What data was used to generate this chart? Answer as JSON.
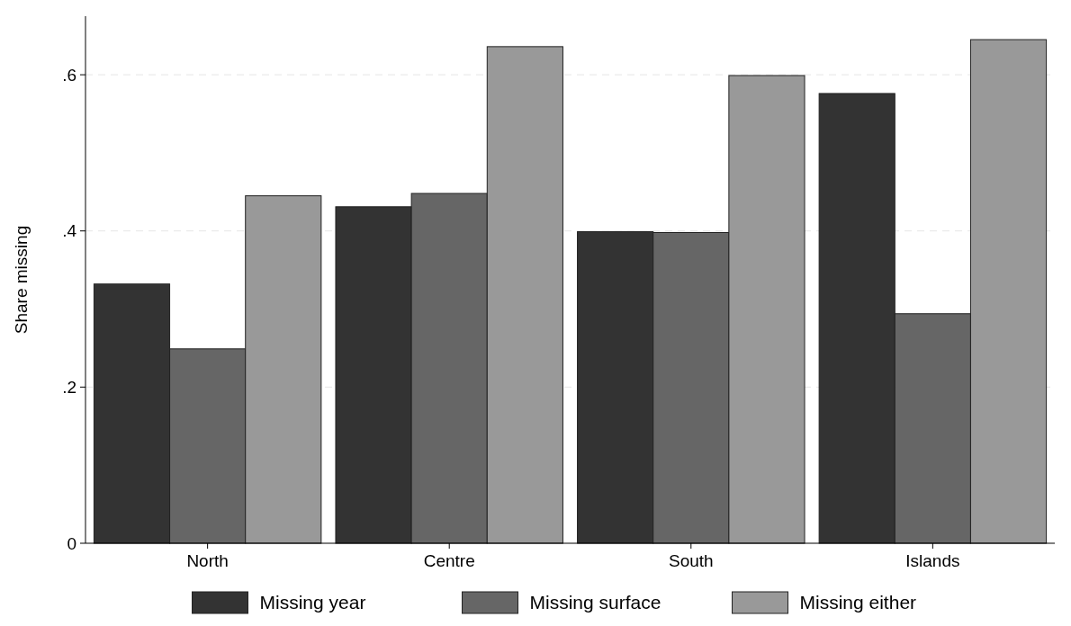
{
  "chart_data": {
    "type": "bar",
    "ylabel": "Share missing",
    "categories": [
      "North",
      "Centre",
      "South",
      "Islands"
    ],
    "series": [
      {
        "name": "Missing year",
        "color": "#333333",
        "values": [
          0.332,
          0.431,
          0.399,
          0.576
        ]
      },
      {
        "name": "Missing surface",
        "color": "#666666",
        "values": [
          0.249,
          0.448,
          0.398,
          0.294
        ]
      },
      {
        "name": "Missing either",
        "color": "#999999",
        "values": [
          0.445,
          0.636,
          0.599,
          0.645
        ]
      }
    ],
    "ylim": [
      0,
      0.675
    ],
    "yticks": [
      {
        "value": 0,
        "label": "0"
      },
      {
        "value": 0.2,
        "label": ".2"
      },
      {
        "value": 0.4,
        "label": ".4"
      },
      {
        "value": 0.6,
        "label": ".6"
      }
    ],
    "grid": "y",
    "legend": "bottom"
  }
}
